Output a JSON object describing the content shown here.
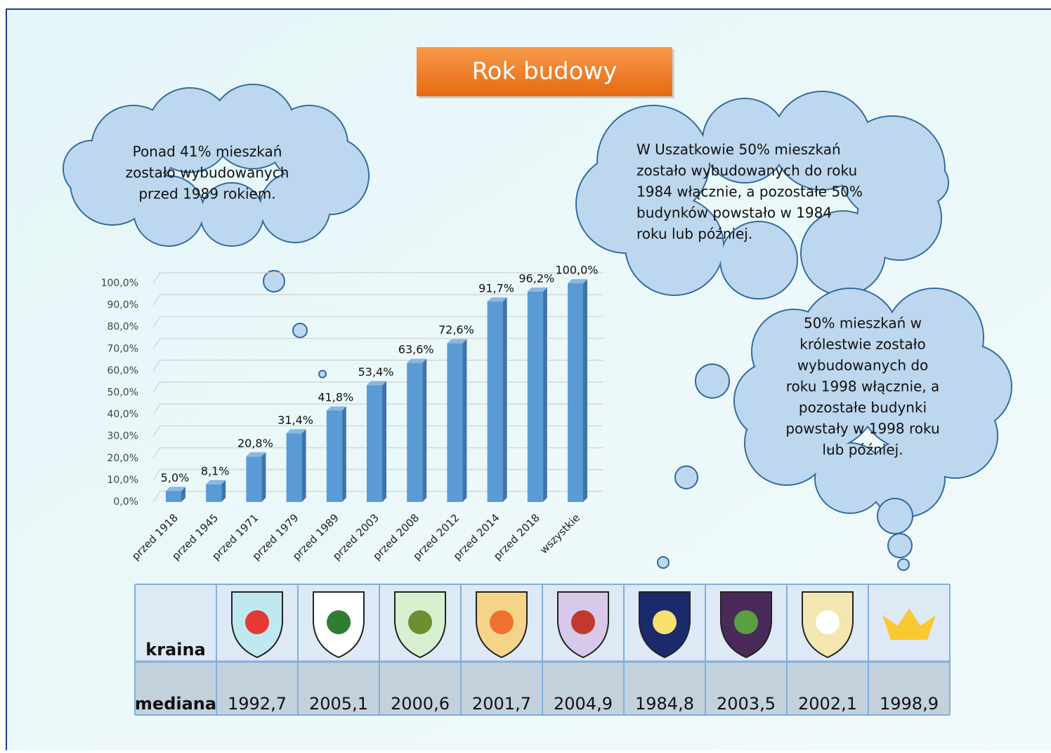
{
  "title": "Rok budowy",
  "clouds": [
    {
      "lines": [
        "Ponad 41%  mieszkań",
        "zostało wybudowanych",
        "przed 1989 rokiem."
      ]
    },
    {
      "lines": [
        "W Uszatkowie 50% mieszkań",
        "zostało wybudowanych do roku",
        "1984 włącznie, a pozostałe 50%",
        "budynków powstało w 1984",
        "roku lub później."
      ]
    },
    {
      "lines": [
        "50% mieszkań w",
        "królestwie zostało",
        "wybudowanych do",
        "roku 1998 włącznie, a",
        "pozostałe budynki",
        "powstały w 1998 roku",
        "lub później."
      ]
    }
  ],
  "chart_data": {
    "type": "bar",
    "categories": [
      "przed 1918",
      "przed 1945",
      "przed 1971",
      "przed 1979",
      "przed 1989",
      "przed 2003",
      "przed 2008",
      "przed 2012",
      "przed 2014",
      "przed 2018",
      "wszystkie"
    ],
    "values": [
      5.0,
      8.1,
      20.8,
      31.4,
      41.8,
      53.4,
      63.6,
      72.6,
      91.7,
      96.2,
      100.0
    ],
    "value_labels": [
      "5,0%",
      "8,1%",
      "20,8%",
      "31,4%",
      "41,8%",
      "53,4%",
      "63,6%",
      "72,6%",
      "91,7%",
      "96,2%",
      "100,0%"
    ],
    "color": "#5b9bd5",
    "ylim": [
      0,
      100
    ],
    "yticks": [
      {
        "value": 0,
        "label": "0,0%"
      },
      {
        "value": 10,
        "label": "10,0%"
      },
      {
        "value": 20,
        "label": "20,0%"
      },
      {
        "value": 30,
        "label": "30,0%"
      },
      {
        "value": 40,
        "label": "40,0%"
      },
      {
        "value": 50,
        "label": "50,0%"
      },
      {
        "value": 60,
        "label": "60,0%"
      },
      {
        "value": 70,
        "label": "70,0%"
      },
      {
        "value": 80,
        "label": "80,0%"
      },
      {
        "value": 90,
        "label": "90,0%"
      },
      {
        "value": 100,
        "label": "100,0%"
      }
    ],
    "grid": true
  },
  "table": {
    "row_labels": [
      "kraina",
      "mediana"
    ],
    "medians": [
      "1992,7",
      "2005,1",
      "2000,6",
      "2001,7",
      "2004,9",
      "1984,8",
      "2003,5",
      "2002,1",
      "1998,9"
    ]
  }
}
